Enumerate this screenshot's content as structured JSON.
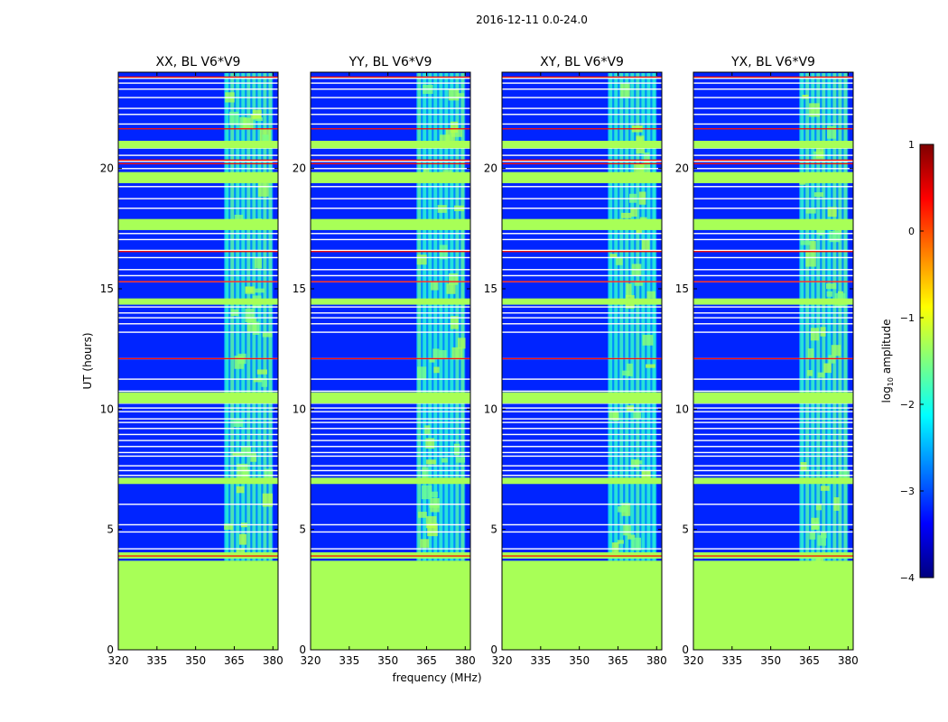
{
  "chart_data": {
    "type": "heatmap",
    "suptitle": "2016-12-11 0.0-24.0",
    "xlabel": "frequency (MHz)",
    "ylabel": "UT (hours)",
    "xlim": [
      320,
      382
    ],
    "ylim": [
      0,
      24
    ],
    "xticks": [
      320,
      335,
      350,
      365,
      380
    ],
    "yticks": [
      0,
      5,
      10,
      15,
      20
    ],
    "colorbar": {
      "label": "log",
      "label_sub": "10",
      "label_rest": " amplitude",
      "range": [
        -4,
        1
      ],
      "ticks": [
        -4,
        -3,
        -2,
        -1,
        0,
        1
      ],
      "tick_labels": [
        "−4",
        "−3",
        "−2",
        "−1",
        "0",
        "1"
      ],
      "colors": [
        "#00007f",
        "#0000ff",
        "#007fff",
        "#00ffff",
        "#7fff7f",
        "#ffff00",
        "#ff7f00",
        "#ff0000",
        "#7f0000"
      ]
    },
    "panels": [
      {
        "title": "XX, BL V6*V9"
      },
      {
        "title": "YY, BL V6*V9"
      },
      {
        "title": "XY, BL V6*V9"
      },
      {
        "title": "YX, BL V6*V9"
      }
    ],
    "flagged_range_hours": [
      0.0,
      3.7
    ],
    "rfi_band_mhz": [
      361,
      380
    ],
    "background_log_amp": -3.2,
    "flagged_log_amp": -1.3,
    "flagged_rows_hours": [
      3.95,
      4.2,
      4.9,
      5.2,
      6.05,
      6.95,
      7.1,
      7.25,
      7.45,
      7.65,
      8.05,
      8.2,
      8.45,
      8.7,
      8.95,
      9.2,
      9.45,
      9.6,
      9.9,
      10.05,
      10.25,
      10.5,
      10.75,
      11.25,
      12.1,
      13.2,
      13.55,
      13.8,
      14.0,
      14.25,
      15.3,
      15.55,
      15.8,
      16.3,
      16.6,
      17.05,
      17.3,
      17.55,
      17.7,
      18.35,
      18.75,
      19.25,
      19.5,
      19.7,
      20.0,
      20.3,
      20.55,
      20.85,
      21.0,
      21.85,
      22.25,
      22.5,
      22.95,
      23.3,
      23.55,
      23.75
    ],
    "red_rows_hours": [
      3.9,
      12.1,
      15.3,
      16.55,
      20.2,
      20.35,
      21.65,
      23.8
    ],
    "strong_rows_hours": [
      3.9,
      7.0,
      10.35,
      10.55,
      14.45,
      17.55,
      17.75,
      19.5,
      19.7,
      20.95,
      21.0
    ]
  }
}
